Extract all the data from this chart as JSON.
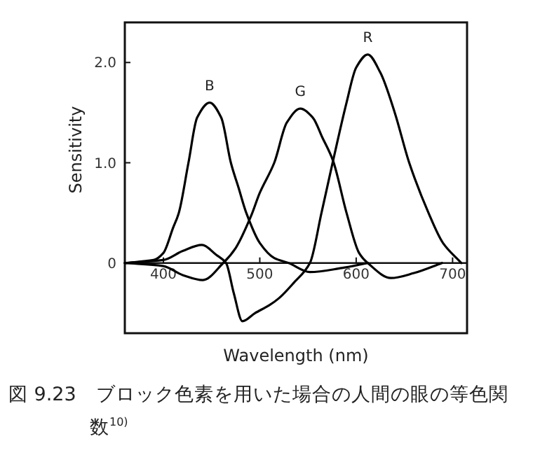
{
  "chart_data": {
    "type": "line",
    "xlabel": "Wavelength (nm)",
    "ylabel": "Sensitivity",
    "xlim": [
      360,
      715
    ],
    "ylim": [
      -0.7,
      2.4
    ],
    "xticks": [
      400,
      500,
      600,
      700
    ],
    "yticks": [
      {
        "value": 0,
        "label": "0"
      },
      {
        "value": 1,
        "label": "1.0"
      },
      {
        "value": 2,
        "label": "2.0"
      }
    ],
    "series": [
      {
        "name": "B",
        "color": "#000000",
        "x": [
          360,
          390,
          400,
          410,
          416,
          426,
          435,
          448,
          460,
          470,
          478,
          486,
          500,
          515,
          530,
          552,
          585,
          612
        ],
        "values": [
          0,
          0.03,
          0.1,
          0.35,
          0.5,
          1.0,
          1.45,
          1.6,
          1.45,
          1.0,
          0.75,
          0.5,
          0.2,
          0.05,
          0,
          -0.09,
          -0.05,
          0
        ]
      },
      {
        "name": "G",
        "color": "#000000",
        "x": [
          360,
          400,
          420,
          441,
          462,
          475,
          491,
          500,
          515,
          528,
          542,
          555,
          565,
          576,
          590,
          603,
          612,
          636,
          660,
          689
        ],
        "values": [
          0,
          -0.03,
          -0.12,
          -0.17,
          0,
          0.15,
          0.47,
          0.7,
          1.0,
          1.4,
          1.54,
          1.45,
          1.25,
          1.02,
          0.5,
          0.1,
          0,
          -0.15,
          -0.1,
          0
        ]
      },
      {
        "name": "R",
        "color": "#000000",
        "x": [
          360,
          400,
          420,
          440,
          455,
          465,
          473,
          482,
          495,
          510,
          520,
          535,
          552,
          564,
          576,
          590,
          600,
          612,
          625,
          640,
          655,
          675,
          690,
          709
        ],
        "values": [
          0,
          0.03,
          0.12,
          0.18,
          0.08,
          0,
          -0.3,
          -0.58,
          -0.5,
          -0.42,
          -0.35,
          -0.2,
          0,
          0.5,
          1.02,
          1.6,
          1.95,
          2.08,
          1.9,
          1.5,
          1.0,
          0.5,
          0.2,
          0
        ]
      }
    ],
    "annotations": [
      "図 9.23　ブロック色素を用いた場合の人間の眼の等色関数$^{10)}$"
    ]
  }
}
